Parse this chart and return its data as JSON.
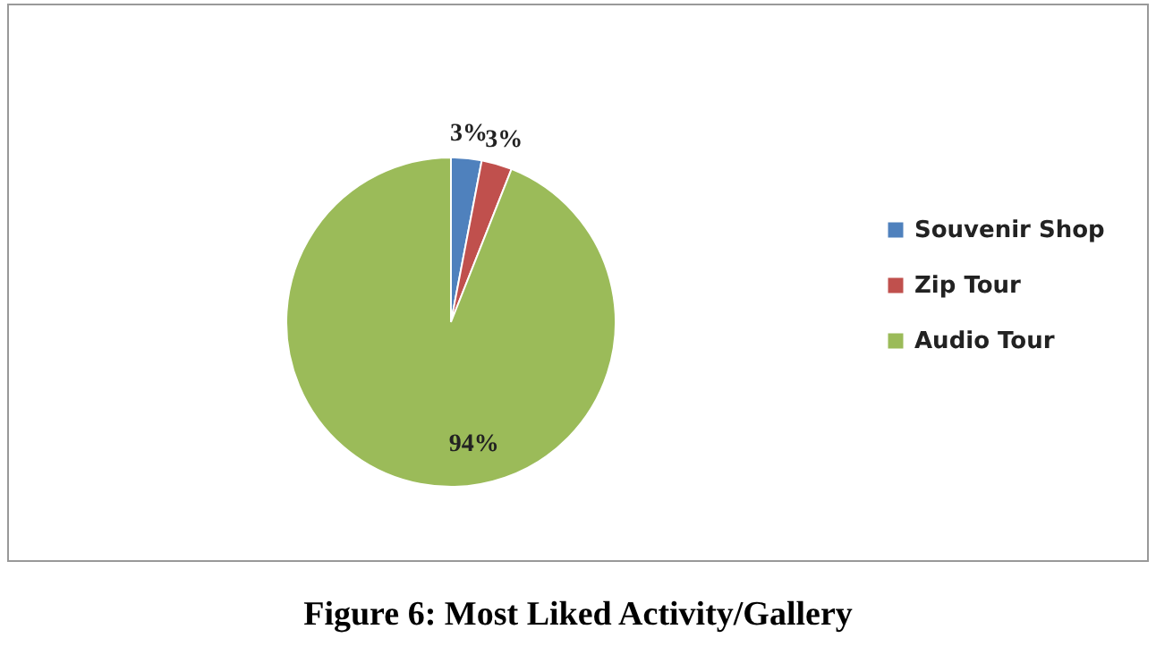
{
  "chart_data": {
    "type": "pie",
    "title": "Figure 6: Most Liked Activity/Gallery",
    "categories": [
      "Souvenir Shop",
      "Zip Tour",
      "Audio Tour"
    ],
    "values": [
      3,
      3,
      94
    ],
    "value_labels": [
      "3%",
      "3%",
      "94%"
    ],
    "colors": [
      "#4f81bd",
      "#c0504d",
      "#9bbb59"
    ],
    "legend": "right"
  }
}
